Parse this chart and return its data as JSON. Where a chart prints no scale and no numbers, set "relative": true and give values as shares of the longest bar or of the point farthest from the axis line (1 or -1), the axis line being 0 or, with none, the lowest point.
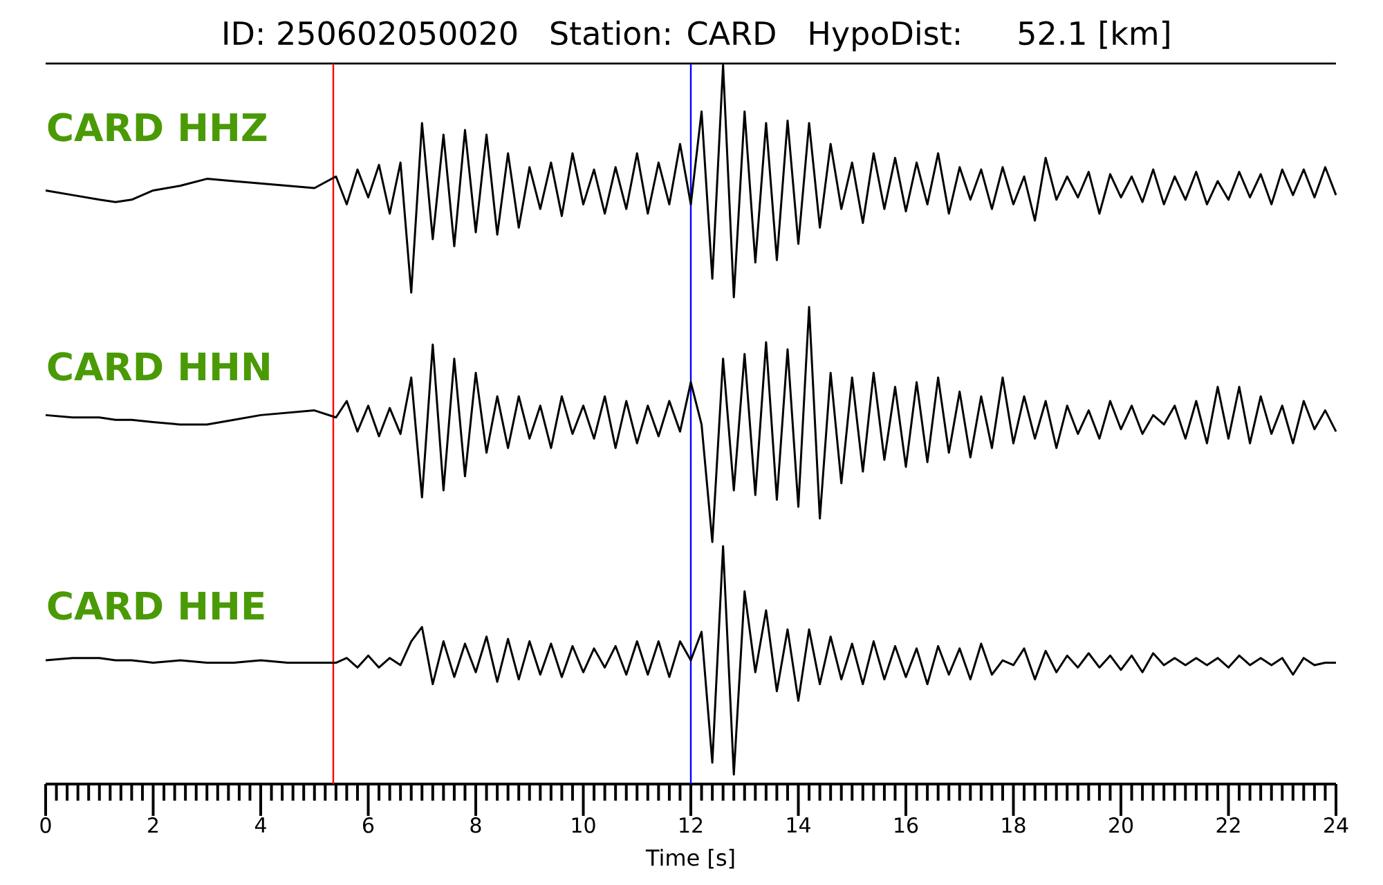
{
  "chart_data": [
    {
      "type": "line",
      "title": "ID: 250602050020   Station: CARD   HypoDist:    52.1 [km]",
      "annotations": [
        "CARD HHZ"
      ],
      "relative": true,
      "xlim": [
        0,
        24
      ],
      "tick_labels": false,
      "ref_lines": [
        {
          "axis": "x",
          "value": 5.35,
          "color": "#ff0000"
        },
        {
          "axis": "x",
          "value": 12.0,
          "color": "#0000ff"
        }
      ],
      "x": [
        0,
        0.5,
        1,
        1.3,
        1.6,
        2,
        2.5,
        3,
        3.5,
        4,
        4.5,
        5,
        5.4,
        5.6,
        5.8,
        6,
        6.2,
        6.4,
        6.6,
        6.8,
        7,
        7.2,
        7.4,
        7.6,
        7.8,
        8,
        8.2,
        8.4,
        8.6,
        8.8,
        9,
        9.2,
        9.4,
        9.6,
        9.8,
        10,
        10.2,
        10.4,
        10.6,
        10.8,
        11,
        11.2,
        11.4,
        11.6,
        11.8,
        12,
        12.2,
        12.4,
        12.6,
        12.8,
        13,
        13.2,
        13.4,
        13.6,
        13.8,
        14,
        14.2,
        14.4,
        14.6,
        14.8,
        15,
        15.2,
        15.4,
        15.6,
        15.8,
        16,
        16.2,
        16.4,
        16.6,
        16.8,
        17,
        17.2,
        17.4,
        17.6,
        17.8,
        18,
        18.2,
        18.4,
        18.6,
        18.8,
        19,
        19.2,
        19.4,
        19.6,
        19.8,
        20,
        20.2,
        20.4,
        20.6,
        20.8,
        21,
        21.2,
        21.4,
        21.6,
        21.8,
        22,
        22.2,
        22.4,
        22.6,
        22.8,
        23,
        23.2,
        23.4,
        23.6,
        23.8,
        24
      ],
      "series": [
        {
          "color": "#000000",
          "values": [
            0.46,
            0.44,
            0.42,
            0.41,
            0.42,
            0.46,
            0.48,
            0.51,
            0.5,
            0.49,
            0.48,
            0.47,
            0.52,
            0.4,
            0.55,
            0.43,
            0.57,
            0.36,
            0.58,
            0.02,
            0.75,
            0.25,
            0.7,
            0.22,
            0.72,
            0.28,
            0.7,
            0.27,
            0.62,
            0.3,
            0.56,
            0.38,
            0.58,
            0.35,
            0.62,
            0.4,
            0.55,
            0.36,
            0.56,
            0.38,
            0.62,
            0.36,
            0.58,
            0.4,
            0.66,
            0.4,
            0.8,
            0.08,
            1,
            0,
            0.8,
            0.15,
            0.75,
            0.16,
            0.76,
            0.23,
            0.75,
            0.3,
            0.66,
            0.38,
            0.58,
            0.32,
            0.62,
            0.38,
            0.6,
            0.37,
            0.58,
            0.4,
            0.62,
            0.36,
            0.56,
            0.42,
            0.55,
            0.38,
            0.56,
            0.4,
            0.52,
            0.33,
            0.6,
            0.42,
            0.52,
            0.43,
            0.54,
            0.36,
            0.53,
            0.43,
            0.52,
            0.41,
            0.55,
            0.4,
            0.52,
            0.42,
            0.54,
            0.4,
            0.5,
            0.42,
            0.54,
            0.43,
            0.53,
            0.4,
            0.55,
            0.44,
            0.55,
            0.43,
            0.56,
            0.44
          ]
        }
      ]
    },
    {
      "type": "line",
      "annotations": [
        "CARD HHN"
      ],
      "relative": true,
      "xlim": [
        0,
        24
      ],
      "tick_labels": false,
      "ref_lines": [
        {
          "axis": "x",
          "value": 5.35,
          "color": "#ff0000"
        },
        {
          "axis": "x",
          "value": 12.0,
          "color": "#0000ff"
        }
      ],
      "x": [
        0,
        0.5,
        1,
        1.3,
        1.6,
        2,
        2.5,
        3,
        3.5,
        4,
        4.5,
        5,
        5.4,
        5.6,
        5.8,
        6,
        6.2,
        6.4,
        6.6,
        6.8,
        7,
        7.2,
        7.4,
        7.6,
        7.8,
        8,
        8.2,
        8.4,
        8.6,
        8.8,
        9,
        9.2,
        9.4,
        9.6,
        9.8,
        10,
        10.2,
        10.4,
        10.6,
        10.8,
        11,
        11.2,
        11.4,
        11.6,
        11.8,
        12,
        12.2,
        12.4,
        12.6,
        12.8,
        13,
        13.2,
        13.4,
        13.6,
        13.8,
        14,
        14.2,
        14.4,
        14.6,
        14.8,
        15,
        15.2,
        15.4,
        15.6,
        15.8,
        16,
        16.2,
        16.4,
        16.6,
        16.8,
        17,
        17.2,
        17.4,
        17.6,
        17.8,
        18,
        18.2,
        18.4,
        18.6,
        18.8,
        19,
        19.2,
        19.4,
        19.6,
        19.8,
        20,
        20.2,
        20.4,
        20.6,
        20.8,
        21,
        21.2,
        21.4,
        21.6,
        21.8,
        22,
        22.2,
        22.4,
        22.6,
        22.8,
        23,
        23.2,
        23.4,
        23.6,
        23.8,
        24
      ],
      "series": [
        {
          "color": "#000000",
          "values": [
            0.54,
            0.53,
            0.53,
            0.52,
            0.52,
            0.51,
            0.5,
            0.5,
            0.52,
            0.54,
            0.55,
            0.56,
            0.53,
            0.6,
            0.47,
            0.58,
            0.45,
            0.57,
            0.46,
            0.7,
            0.19,
            0.84,
            0.22,
            0.78,
            0.28,
            0.72,
            0.38,
            0.62,
            0.4,
            0.62,
            0.44,
            0.58,
            0.4,
            0.62,
            0.46,
            0.58,
            0.44,
            0.62,
            0.4,
            0.6,
            0.42,
            0.58,
            0.45,
            0.6,
            0.47,
            0.68,
            0.5,
            0,
            0.78,
            0.22,
            0.8,
            0.2,
            0.85,
            0.18,
            0.82,
            0.15,
            1,
            0.1,
            0.72,
            0.25,
            0.7,
            0.3,
            0.72,
            0.35,
            0.66,
            0.32,
            0.68,
            0.34,
            0.7,
            0.38,
            0.64,
            0.36,
            0.62,
            0.4,
            0.7,
            0.42,
            0.62,
            0.44,
            0.6,
            0.4,
            0.58,
            0.46,
            0.56,
            0.44,
            0.6,
            0.48,
            0.58,
            0.46,
            0.54,
            0.5,
            0.58,
            0.44,
            0.6,
            0.42,
            0.66,
            0.44,
            0.66,
            0.42,
            0.62,
            0.46,
            0.58,
            0.42,
            0.6,
            0.48,
            0.56,
            0.47
          ]
        }
      ]
    },
    {
      "type": "line",
      "annotations": [
        "CARD HHE"
      ],
      "relative": true,
      "xlabel": "Time [s]",
      "xlim": [
        0,
        24
      ],
      "xticks": [
        0,
        2,
        4,
        6,
        8,
        10,
        12,
        14,
        16,
        18,
        20,
        22,
        24
      ],
      "tick_labels": "x",
      "ref_lines": [
        {
          "axis": "x",
          "value": 5.35,
          "color": "#ff0000"
        },
        {
          "axis": "x",
          "value": 12.0,
          "color": "#0000ff"
        }
      ],
      "x": [
        0,
        0.5,
        1,
        1.3,
        1.6,
        2,
        2.5,
        3,
        3.5,
        4,
        4.5,
        5,
        5.4,
        5.6,
        5.8,
        6,
        6.2,
        6.4,
        6.6,
        6.8,
        7,
        7.2,
        7.4,
        7.6,
        7.8,
        8,
        8.2,
        8.4,
        8.6,
        8.8,
        9,
        9.2,
        9.4,
        9.6,
        9.8,
        10,
        10.2,
        10.4,
        10.6,
        10.8,
        11,
        11.2,
        11.4,
        11.6,
        11.8,
        12,
        12.2,
        12.4,
        12.6,
        12.8,
        13,
        13.2,
        13.4,
        13.6,
        13.8,
        14,
        14.2,
        14.4,
        14.6,
        14.8,
        15,
        15.2,
        15.4,
        15.6,
        15.8,
        16,
        16.2,
        16.4,
        16.6,
        16.8,
        17,
        17.2,
        17.4,
        17.6,
        17.8,
        18,
        18.2,
        18.4,
        18.6,
        18.8,
        19,
        19.2,
        19.4,
        19.6,
        19.8,
        20,
        20.2,
        20.4,
        20.6,
        20.8,
        21,
        21.2,
        21.4,
        21.6,
        21.8,
        22,
        22.2,
        22.4,
        22.6,
        22.8,
        23,
        23.2,
        23.4,
        23.6,
        23.8,
        24
      ],
      "series": [
        {
          "color": "#000000",
          "values": [
            0.52,
            0.53,
            0.53,
            0.52,
            0.52,
            0.51,
            0.52,
            0.51,
            0.51,
            0.52,
            0.51,
            0.51,
            0.51,
            0.53,
            0.49,
            0.54,
            0.49,
            0.53,
            0.5,
            0.6,
            0.66,
            0.42,
            0.6,
            0.45,
            0.59,
            0.47,
            0.62,
            0.43,
            0.61,
            0.44,
            0.6,
            0.46,
            0.59,
            0.45,
            0.58,
            0.47,
            0.57,
            0.49,
            0.58,
            0.46,
            0.6,
            0.46,
            0.6,
            0.45,
            0.6,
            0.52,
            0.64,
            0.09,
            1,
            0.04,
            0.81,
            0.47,
            0.73,
            0.39,
            0.65,
            0.35,
            0.65,
            0.42,
            0.62,
            0.44,
            0.59,
            0.42,
            0.6,
            0.44,
            0.58,
            0.45,
            0.57,
            0.42,
            0.58,
            0.46,
            0.57,
            0.44,
            0.59,
            0.46,
            0.52,
            0.5,
            0.57,
            0.44,
            0.56,
            0.47,
            0.54,
            0.49,
            0.55,
            0.49,
            0.54,
            0.48,
            0.54,
            0.47,
            0.55,
            0.5,
            0.53,
            0.5,
            0.53,
            0.5,
            0.53,
            0.49,
            0.54,
            0.5,
            0.53,
            0.5,
            0.53,
            0.46,
            0.53,
            0.5,
            0.51,
            0.51
          ]
        }
      ]
    }
  ]
}
